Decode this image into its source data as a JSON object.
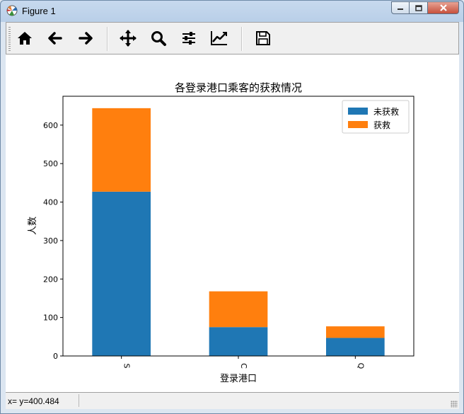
{
  "window": {
    "title": "Figure 1"
  },
  "toolbar": {
    "buttons": [
      {
        "name": "home-button",
        "icon": "home-icon"
      },
      {
        "name": "back-button",
        "icon": "arrow-left-icon"
      },
      {
        "name": "forward-button",
        "icon": "arrow-right-icon"
      },
      {
        "name": "pan-button",
        "icon": "move-icon"
      },
      {
        "name": "zoom-button",
        "icon": "magnifier-icon"
      },
      {
        "name": "subplots-button",
        "icon": "sliders-icon"
      },
      {
        "name": "edit-axis-button",
        "icon": "line-chart-icon"
      },
      {
        "name": "save-button",
        "icon": "floppy-disk-icon"
      }
    ]
  },
  "status": {
    "text": "x= y=400.484"
  },
  "chart_data": {
    "type": "bar",
    "stacked": true,
    "title": "各登录港口乘客的获救情况",
    "xlabel": "登录港口",
    "ylabel": "人数",
    "categories": [
      "S",
      "C",
      "Q"
    ],
    "series": [
      {
        "name": "未获救",
        "values": [
          427,
          75,
          47
        ],
        "color": "#1f77b4"
      },
      {
        "name": "获救",
        "values": [
          217,
          93,
          30
        ],
        "color": "#ff7f0e"
      }
    ],
    "ylim": [
      0,
      675
    ],
    "yticks": [
      "0",
      "100",
      "200",
      "300",
      "400",
      "500",
      "600"
    ],
    "legend": "top-right",
    "grid": false
  }
}
